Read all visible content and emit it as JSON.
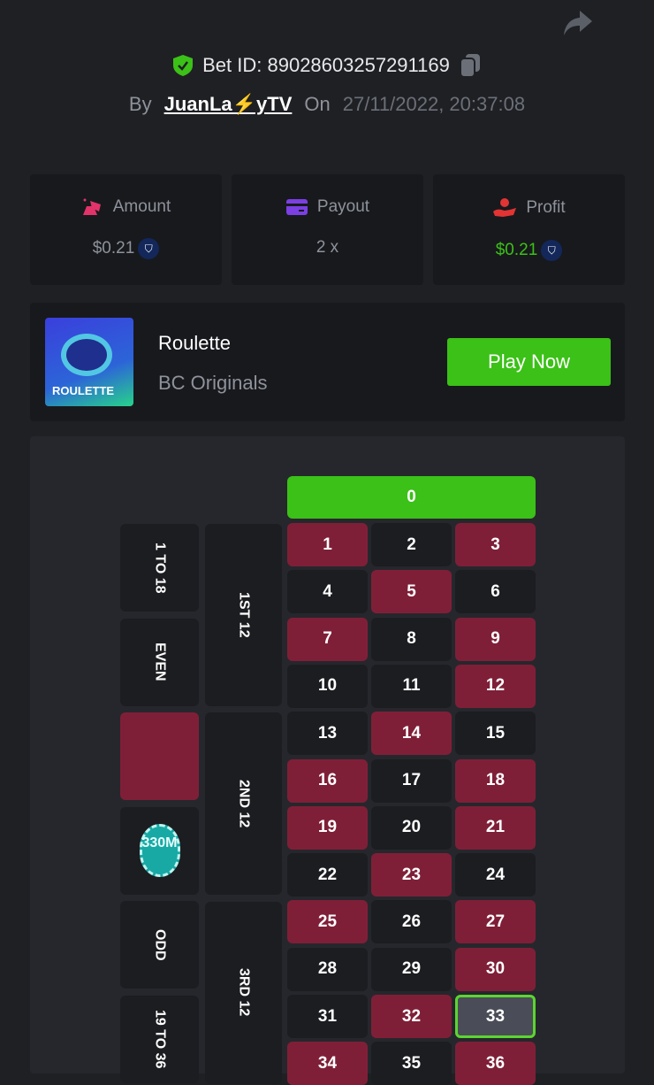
{
  "header": {
    "bet_id_label": "Bet ID: 89028603257291169",
    "by_label": "By",
    "username": "JuanLa⚡yTV",
    "on_label": "On",
    "datetime": "27/11/2022, 20:37:08"
  },
  "stats": [
    {
      "label": "Amount",
      "value": "$0.21",
      "icon": "amount-icon",
      "color": "#8e929b"
    },
    {
      "label": "Payout",
      "value": "2 x",
      "icon": "payout-card-icon",
      "color": "#8e929b"
    },
    {
      "label": "Profit",
      "value": "$0.21",
      "icon": "profit-hand-icon",
      "color": "#3bc117"
    }
  ],
  "game": {
    "thumb_text": "ROULETTE",
    "name": "Roulette",
    "provider": "BC Originals",
    "play_label": "Play Now"
  },
  "board": {
    "zero": "0",
    "red_numbers": [
      1,
      3,
      5,
      7,
      9,
      12,
      14,
      16,
      18,
      19,
      21,
      23,
      25,
      27,
      30,
      32,
      34,
      36
    ],
    "highlighted": 33,
    "dozens": [
      "1ST 12",
      "2ND 12",
      "3RD 12"
    ],
    "outside": [
      "1 TO 18",
      "EVEN",
      "",
      "",
      "ODD",
      "19 TO 36"
    ],
    "chip_label": "330M",
    "colors": {
      "red": "#7f1f37",
      "green": "#3bc117",
      "black": "#1c1d21"
    }
  }
}
